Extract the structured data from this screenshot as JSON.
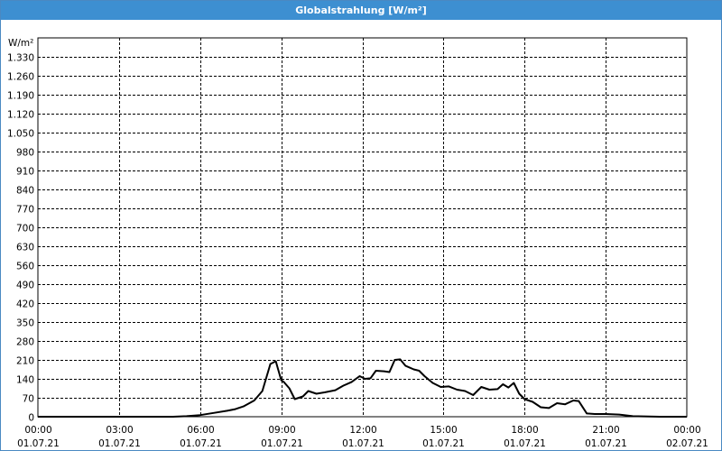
{
  "window": {
    "title": "Globalstrahlung [W/m²]"
  },
  "chart_data": {
    "type": "line",
    "title": "Globalstrahlung [W/m²]",
    "ylabel": "W/m²",
    "xlabel": "",
    "ylim": [
      0,
      1400
    ],
    "xlim": [
      0,
      24
    ],
    "grid": true,
    "y_ticks": [
      0,
      70,
      140,
      210,
      280,
      350,
      420,
      490,
      560,
      630,
      700,
      770,
      840,
      910,
      980,
      1050,
      1120,
      1190,
      1260,
      1330
    ],
    "y_tick_labels": [
      "0",
      "70",
      "140",
      "210",
      "280",
      "350",
      "420",
      "490",
      "560",
      "630",
      "700",
      "770",
      "840",
      "910",
      "980",
      "1.050",
      "1.120",
      "1.190",
      "1.260",
      "1.330"
    ],
    "x_ticks": [
      0,
      3,
      6,
      9,
      12,
      15,
      18,
      21,
      24
    ],
    "x_tick_labels": [
      [
        "00:00",
        "01.07.21"
      ],
      [
        "03:00",
        "01.07.21"
      ],
      [
        "06:00",
        "01.07.21"
      ],
      [
        "09:00",
        "01.07.21"
      ],
      [
        "12:00",
        "01.07.21"
      ],
      [
        "15:00",
        "01.07.21"
      ],
      [
        "18:00",
        "01.07.21"
      ],
      [
        "21:00",
        "01.07.21"
      ],
      [
        "00:00",
        "02.07.21"
      ]
    ],
    "series": [
      {
        "color": "#000000",
        "x": [
          0,
          5,
          5.5,
          6,
          6.5,
          7,
          7.3,
          7.6,
          8,
          8.3,
          8.6,
          8.8,
          9,
          9.1,
          9.3,
          9.5,
          9.8,
          10,
          10.3,
          10.6,
          11,
          11.3,
          11.6,
          11.9,
          12.1,
          12.3,
          12.5,
          12.8,
          13,
          13.2,
          13.4,
          13.6,
          13.9,
          14.1,
          14.3,
          14.6,
          14.9,
          15.2,
          15.5,
          15.8,
          16.1,
          16.4,
          16.7,
          17,
          17.2,
          17.4,
          17.6,
          17.8,
          18,
          18.3,
          18.6,
          18.9,
          19.2,
          19.5,
          19.8,
          20,
          20.3,
          20.6,
          21,
          21.5,
          22,
          23,
          24
        ],
        "y": [
          0,
          0,
          2,
          6,
          14,
          22,
          28,
          38,
          60,
          95,
          195,
          205,
          135,
          128,
          105,
          65,
          75,
          95,
          85,
          90,
          98,
          115,
          128,
          150,
          140,
          142,
          170,
          168,
          165,
          210,
          212,
          188,
          175,
          170,
          150,
          125,
          110,
          112,
          100,
          95,
          80,
          110,
          100,
          102,
          120,
          108,
          125,
          85,
          65,
          55,
          35,
          32,
          50,
          46,
          60,
          58,
          12,
          10,
          10,
          8,
          2,
          0,
          0
        ]
      }
    ]
  }
}
